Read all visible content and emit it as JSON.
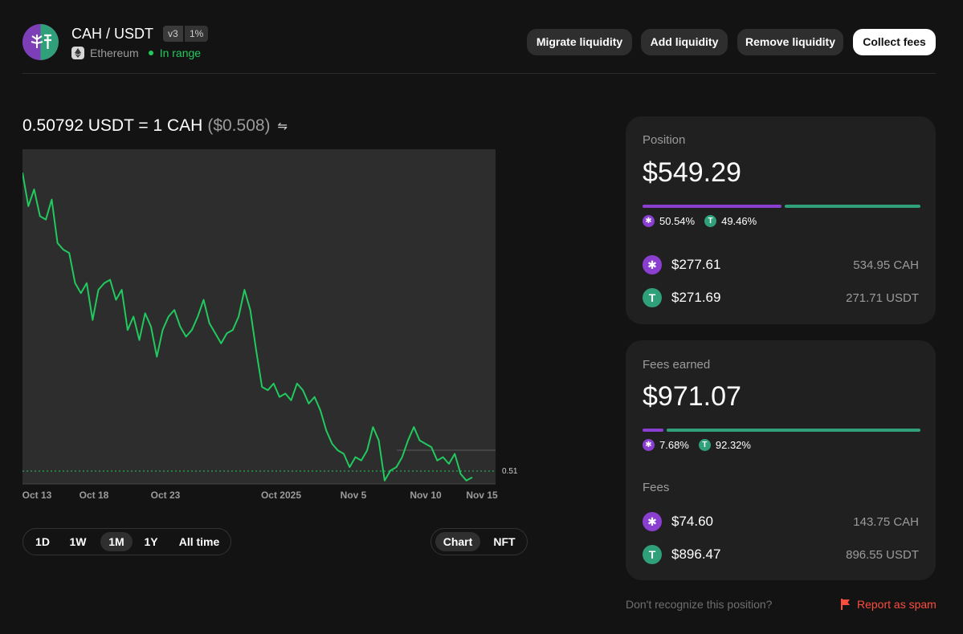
{
  "header": {
    "pair": "CAH / USDT",
    "version": "v3",
    "fee_tier": "1%",
    "chain": "Ethereum",
    "status": "In range",
    "status_color": "#21c95e",
    "buttons": {
      "migrate": "Migrate liquidity",
      "add": "Add liquidity",
      "remove": "Remove liquidity",
      "collect": "Collect fees"
    }
  },
  "price": {
    "rate": "0.50792 USDT = 1 CAH",
    "usd": "($0.508)",
    "swap_icon": "swap-arrows-icon"
  },
  "chart_data": {
    "type": "line",
    "x_tick_labels": [
      "Oct 13",
      "Oct 18",
      "Oct 23",
      "Oct 2025",
      "Nov 5",
      "Nov 10",
      "Nov 15"
    ],
    "price_marker_label": "0.51",
    "line_color": "#21c95e",
    "values": [
      0.93,
      0.83,
      0.88,
      0.8,
      0.79,
      0.85,
      0.72,
      0.7,
      0.69,
      0.6,
      0.57,
      0.6,
      0.49,
      0.58,
      0.6,
      0.61,
      0.55,
      0.58,
      0.46,
      0.5,
      0.43,
      0.51,
      0.47,
      0.38,
      0.46,
      0.5,
      0.52,
      0.47,
      0.44,
      0.46,
      0.5,
      0.55,
      0.48,
      0.45,
      0.42,
      0.45,
      0.46,
      0.5,
      0.58,
      0.52,
      0.4,
      0.29,
      0.28,
      0.3,
      0.26,
      0.27,
      0.25,
      0.3,
      0.28,
      0.24,
      0.26,
      0.22,
      0.16,
      0.12,
      0.1,
      0.09,
      0.05,
      0.08,
      0.07,
      0.1,
      0.17,
      0.13,
      0.01,
      0.04,
      0.05,
      0.08,
      0.13,
      0.17,
      0.13,
      0.12,
      0.11,
      0.07,
      0.08,
      0.06,
      0.09,
      0.03,
      0.01,
      0.02
    ],
    "ylim": [
      0.0,
      1.0
    ],
    "in_range_band": [
      0.0,
      0.1
    ]
  },
  "periods": [
    "1D",
    "1W",
    "1M",
    "1Y",
    "All time"
  ],
  "active_period": "1M",
  "views": [
    "Chart",
    "NFT"
  ],
  "active_view": "Chart",
  "position": {
    "label": "Position",
    "value": "$549.29",
    "split": [
      50.54,
      49.46
    ],
    "cah_pct": "50.54%",
    "usdt_pct": "49.46%",
    "cah_usd": "$277.61",
    "cah_amount": "534.95 CAH",
    "usdt_usd": "$271.69",
    "usdt_amount": "271.71 USDT"
  },
  "fees_earned": {
    "label": "Fees earned",
    "value": "$971.07",
    "split": [
      7.68,
      92.32
    ],
    "cah_pct": "7.68%",
    "usdt_pct": "92.32%",
    "fees_label": "Fees",
    "cah_usd": "$74.60",
    "cah_amount": "143.75 CAH",
    "usdt_usd": "$896.47",
    "usdt_amount": "896.55 USDT"
  },
  "footer": {
    "question": "Don't recognize this position?",
    "report": "Report as spam"
  },
  "colors": {
    "cah": "#8b3fd0",
    "usdt": "#2fa07a",
    "danger": "#fd4d3d"
  }
}
